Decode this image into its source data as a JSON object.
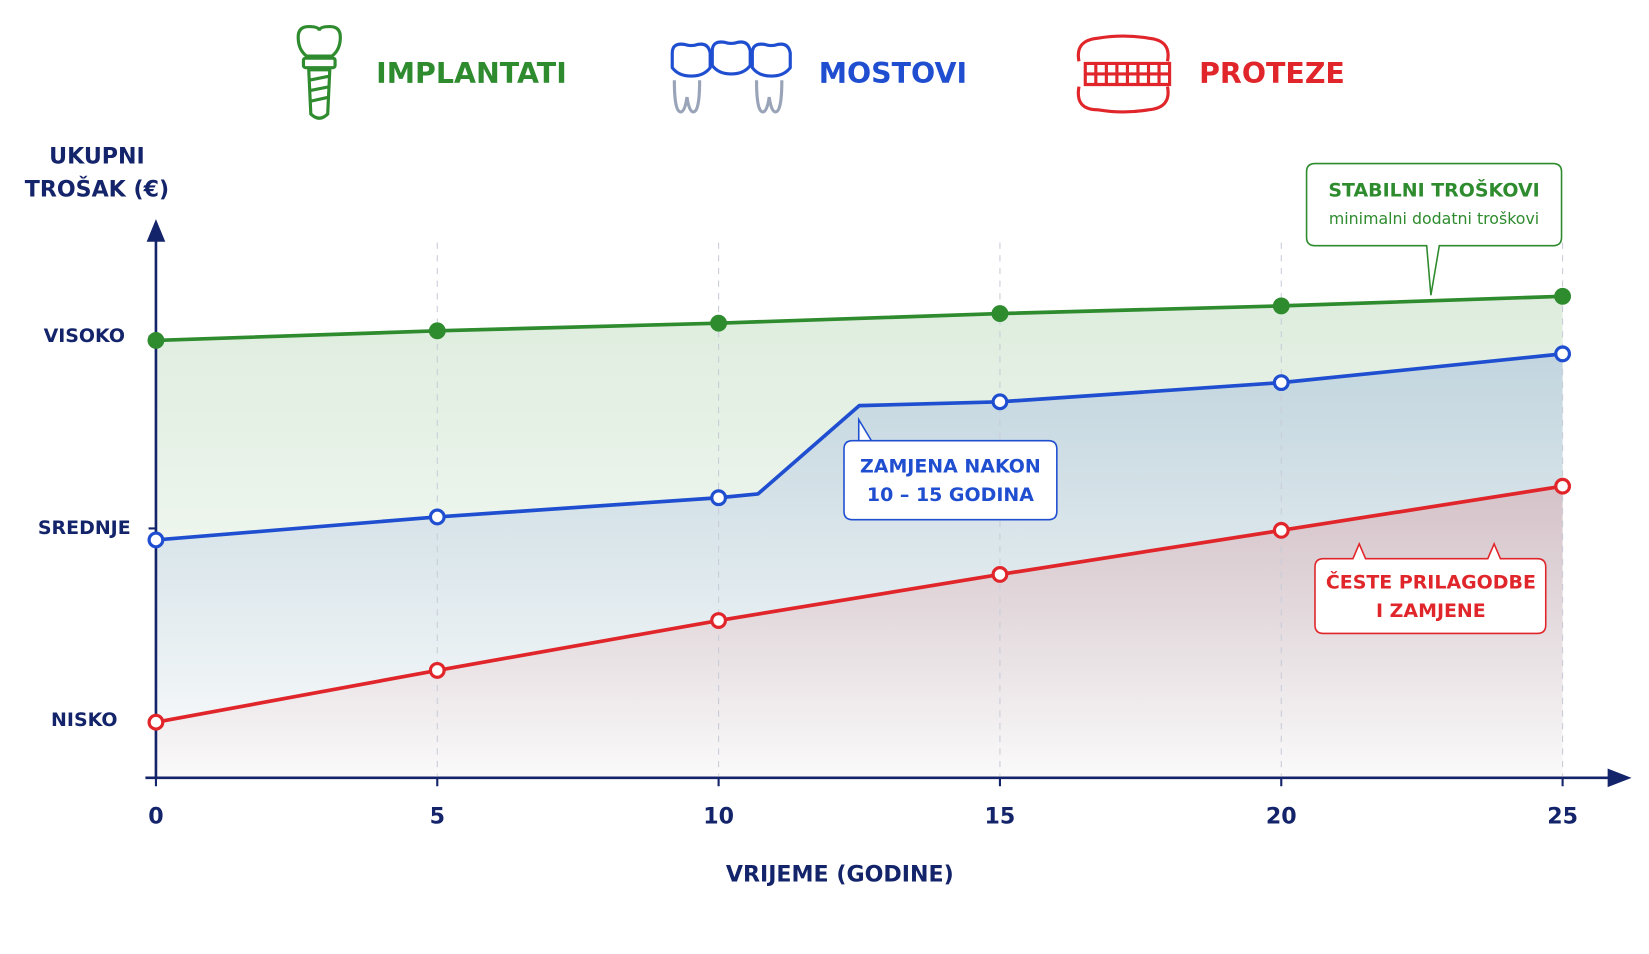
{
  "chart_data": {
    "type": "line",
    "ylabel": [
      "UKUPNI",
      "TROŠAK (€)"
    ],
    "xlabel": "VRIJEME (GODINE)",
    "xlim": [
      0,
      25
    ],
    "xticks": [
      0,
      5,
      10,
      15,
      20,
      25
    ],
    "ylim": [
      0.7,
      3.6
    ],
    "yticks": [
      {
        "value": 1,
        "label": "NISKO"
      },
      {
        "value": 2,
        "label": "SREDNJE"
      },
      {
        "value": 3,
        "label": "VISOKO"
      }
    ],
    "grid": true,
    "series": [
      {
        "name": "IMPLANTATI",
        "color": "#2e8b2e",
        "marker": "filled",
        "x": [
          0,
          5,
          10,
          15,
          20,
          25
        ],
        "values": [
          2.98,
          3.03,
          3.07,
          3.12,
          3.16,
          3.21
        ]
      },
      {
        "name": "MOSTOVI",
        "color": "#1f4fd0",
        "marker": "open",
        "x": [
          0,
          5,
          10,
          10.7,
          12.5,
          15,
          20,
          25
        ],
        "values": [
          1.94,
          2.06,
          2.16,
          2.18,
          2.64,
          2.66,
          2.76,
          2.91
        ]
      },
      {
        "name": "PROTEZE",
        "color": "#e0262b",
        "marker": "open",
        "x": [
          0,
          5,
          10,
          15,
          20,
          25
        ],
        "values": [
          0.99,
          1.26,
          1.52,
          1.76,
          1.99,
          2.22
        ]
      }
    ],
    "annotations": [
      {
        "lines": [
          "STABILNI TROŠKOVI",
          "minimalni dodatni troškovi"
        ]
      },
      {
        "lines": [
          "ZAMJENA NAKON",
          "10 – 15 GODINA"
        ]
      },
      {
        "lines": [
          "ČESTE PRILAGODBE",
          "I ZAMJENE"
        ]
      }
    ]
  }
}
